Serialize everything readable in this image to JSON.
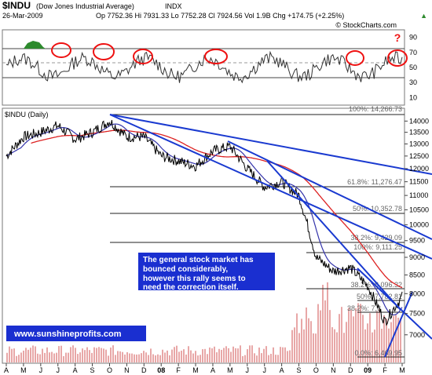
{
  "header": {
    "symbol": "$INDU",
    "name": "(Dow Jones Industrial Average)",
    "exchange": "INDX",
    "date": "26-Mar-2009",
    "quote": "Op 7752.36  Hi 7931.33  Lo 7752.28  Cl 7924.56  Vol 1.9B  Chg +174.75 (+2.25%)",
    "quote_arrow": "▲",
    "copyright": "© StockCharts.com"
  },
  "rsi_panel": {
    "y_ticks": [
      "90",
      "70",
      "50",
      "30",
      "10"
    ],
    "question_mark": "?"
  },
  "price_panel": {
    "label": "$INDU (Daily)",
    "y_ticks": [
      "14000",
      "13500",
      "13000",
      "12500",
      "12000",
      "11500",
      "11000",
      "10500",
      "10000",
      "9500",
      "9000",
      "8500",
      "8000",
      "7500",
      "7000"
    ],
    "x_ticks": [
      "A",
      "M",
      "J",
      "J",
      "A",
      "S",
      "O",
      "N",
      "D",
      "08",
      "F",
      "M",
      "A",
      "M",
      "J",
      "J",
      "A",
      "S",
      "O",
      "N",
      "D",
      "09",
      "F",
      "M"
    ],
    "fib_labels": {
      "f100_top": "100%: 14,266.73",
      "f618": "61.8%: 11,276.47",
      "f50": "50%: 10,352.78",
      "f382": "38.2%: 9,429.09",
      "f100_low": "100%: 9,111.25",
      "f382b": "38.2%: 8,096.32",
      "f50b": "50%: 7,782.81",
      "f382c": "38.2%: 7,3",
      "f0": "0.0%: 6,469.95"
    },
    "annotation": {
      "line1": "The general stock market has",
      "line2": "bounced considerably,",
      "line3": "however this rally seems to",
      "line4": "need the correction itself."
    },
    "url": "www.sunshineprofits.com"
  },
  "colors": {
    "price": "#000000",
    "ma_short": "#3333aa",
    "ma_long": "#dd2222",
    "trendlines": "#1a3ad0",
    "volume": "#e8a7a7",
    "annotation_bg": "#1a2fd0",
    "rsi_circles": "#ee1111",
    "rsi_fill": "#2d8a2d"
  },
  "chart_data": {
    "type": "line",
    "x": [
      "2007-04",
      "2007-05",
      "2007-06",
      "2007-07",
      "2007-08",
      "2007-09",
      "2007-10",
      "2007-11",
      "2007-12",
      "2008-01",
      "2008-02",
      "2008-03",
      "2008-04",
      "2008-05",
      "2008-06",
      "2008-07",
      "2008-08",
      "2008-09",
      "2008-10",
      "2008-11",
      "2008-12",
      "2009-01",
      "2009-02",
      "2009-03"
    ],
    "series": [
      {
        "values": [
          12500,
          13300,
          13500,
          13800,
          13200,
          13500,
          14000,
          13300,
          13300,
          12500,
          12300,
          12100,
          12700,
          12900,
          12000,
          11300,
          11500,
          11000,
          9000,
          8600,
          8700,
          8200,
          7300,
          7924
        ]
      }
    ],
    "ylim": [
      6400,
      14300
    ],
    "log_scale": true,
    "rsi_levels": [
      70,
      50,
      30
    ]
  }
}
